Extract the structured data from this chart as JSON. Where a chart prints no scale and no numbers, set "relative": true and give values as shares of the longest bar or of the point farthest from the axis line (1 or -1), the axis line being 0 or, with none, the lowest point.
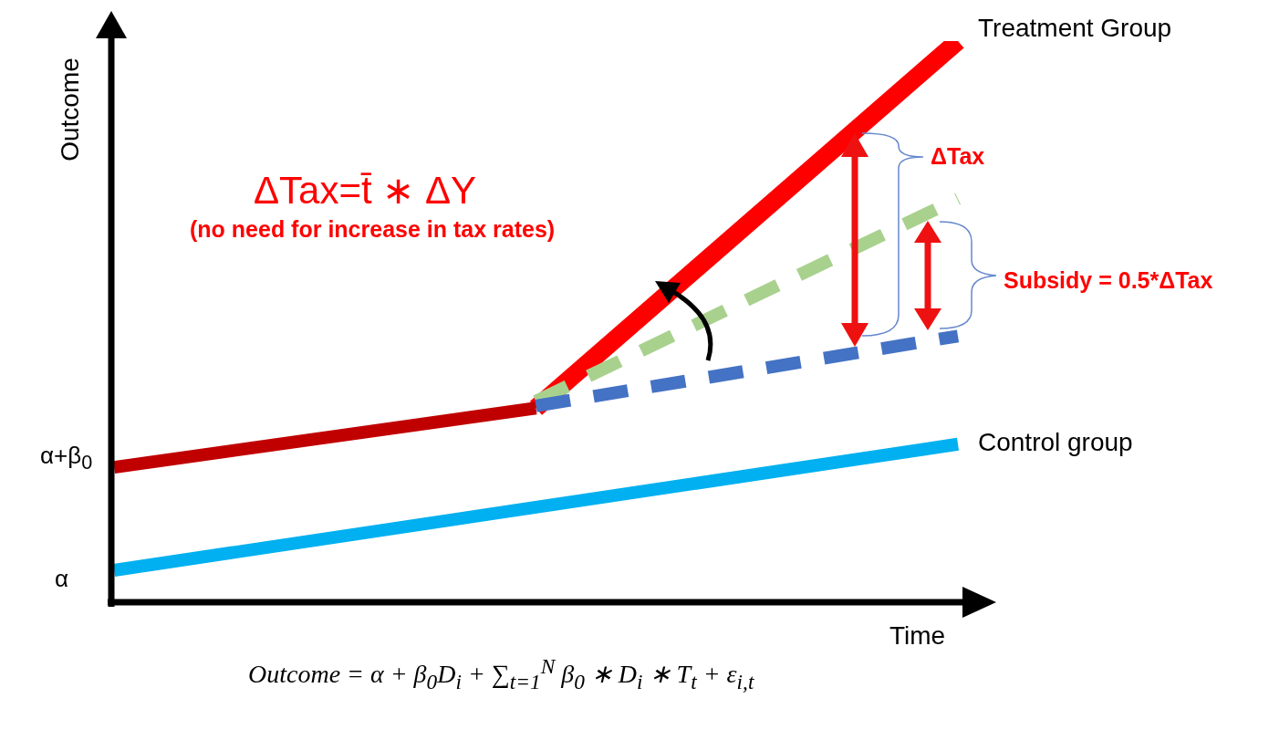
{
  "chart_data": {
    "type": "line",
    "relative": true,
    "xlabel": "Time",
    "ylabel": "Outcome",
    "legend": false,
    "categories": [
      null,
      null,
      null
    ],
    "series": [
      {
        "name": "Control group",
        "color": "#00b0f0",
        "values": [
          0.06,
          0.172,
          0.284
        ],
        "line_style": "solid"
      },
      {
        "color": "#c00000",
        "values": [
          0.243,
          0.348,
          null
        ],
        "line_style": "solid"
      },
      {
        "color": "#4472c4",
        "values": [
          null,
          0.352,
          0.476
        ],
        "line_style": "dashed"
      },
      {
        "color": "#a9d18e",
        "values": [
          null,
          0.36,
          0.72
        ],
        "line_style": "dashed"
      },
      {
        "name": "Treatment Group",
        "color": "#ff0000",
        "values": [
          null,
          0.348,
          1.0
        ],
        "line_style": "solid"
      }
    ],
    "annotations": [
      "ΔTax=t̄ ∗ ΔY",
      "(no need for increase in tax rates)",
      "ΔTax",
      "Subsidy = 0.5*ΔTax",
      "α",
      "α+β$_{0}$",
      "Outcome = α + β$_{0}$D$_{i}$ + ∑$_{t=1}$$^{N}$ β$_{0}$ ∗ D$_{i}$ ∗ T$_{t}$ + ε$_{i,t}$"
    ]
  }
}
